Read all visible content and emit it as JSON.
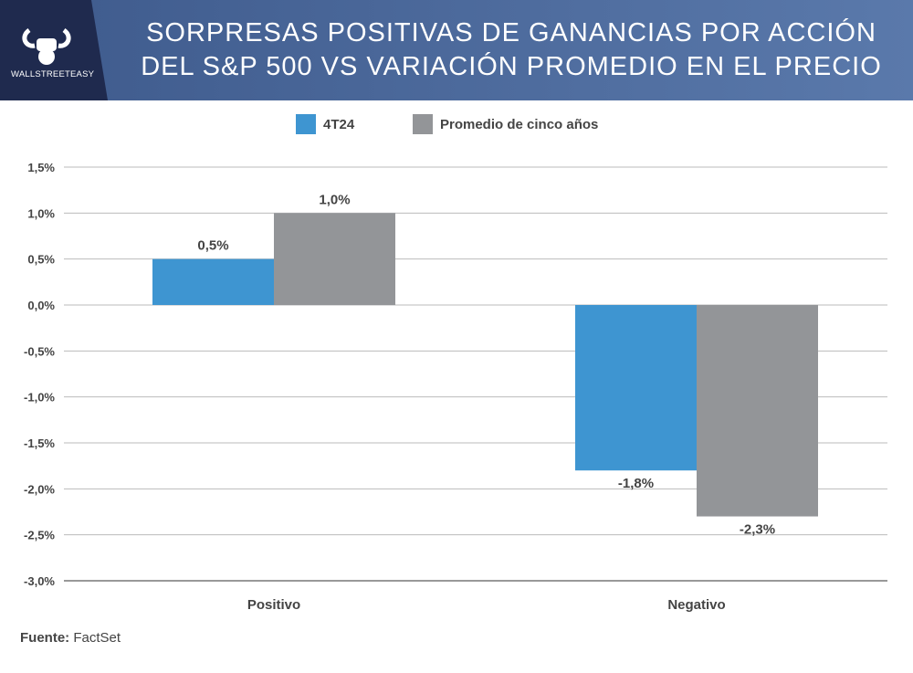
{
  "header": {
    "title_line1": "SORPRESAS POSITIVAS DE GANANCIAS POR ACCIÓN",
    "title_line2": "DEL S&P 500 VS VARIACIÓN PROMEDIO EN EL PRECIO",
    "logo_text": "WALLSTREETEASY"
  },
  "source": {
    "label": "Fuente:",
    "value": "FactSet"
  },
  "chart_data": {
    "type": "bar",
    "title": "SORPRESAS POSITIVAS DE GANANCIAS POR ACCIÓN DEL S&P 500 VS VARIACIÓN PROMEDIO EN EL PRECIO",
    "categories": [
      "Positivo",
      "Negativo"
    ],
    "series": [
      {
        "name": "4T24",
        "values": [
          0.5,
          -1.8
        ],
        "labels": [
          "0,5%",
          "-1,8%"
        ],
        "color": "#3e95d1"
      },
      {
        "name": "Promedio de cinco años",
        "values": [
          1.0,
          -2.3
        ],
        "labels": [
          "1,0%",
          "-2,3%"
        ],
        "color": "#939598"
      }
    ],
    "ylim": [
      -3.0,
      1.5
    ],
    "yticks": [
      1.5,
      1.0,
      0.5,
      0.0,
      -0.5,
      -1.0,
      -1.5,
      -2.0,
      -2.5,
      -3.0
    ],
    "ytick_labels": [
      "1,5%",
      "1,0%",
      "0,5%",
      "0,0%",
      "-0,5%",
      "-1,0%",
      "-1,5%",
      "-2,0%",
      "-2,5%",
      "-3,0%"
    ],
    "grid": true,
    "legend": "top"
  }
}
